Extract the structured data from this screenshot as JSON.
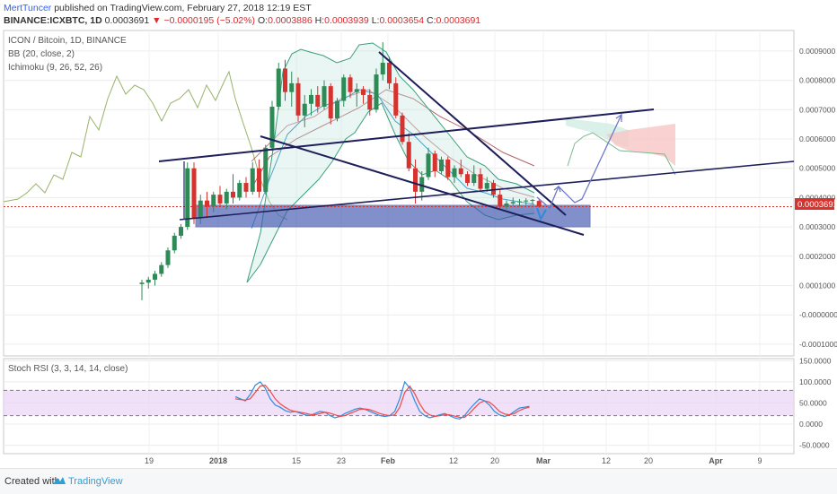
{
  "header": {
    "author": "MertTuncer",
    "published_text": "published on TradingView.com, February 27, 2018 12:19 EST",
    "symbol": "BINANCE:ICXBTC, 1D",
    "last": "0.0003691",
    "change": "▼ −0.0000195 (−5.02%)",
    "o_label": "O:",
    "o": "0.0003886",
    "h_label": "H:",
    "h": "0.0003939",
    "l_label": "L:",
    "l": "0.0003654",
    "c_label": "C:",
    "c": "0.0003691"
  },
  "legend": {
    "title": "ICON / Bitcoin, 1D, BINANCE",
    "bb": "BB (20, close, 2)",
    "ichimoku": "Ichimoku (9, 26, 52, 26)",
    "stoch": "Stoch RSI (3, 3, 14, 14, close)"
  },
  "price_tag": "0.0003691",
  "footer": {
    "created": "Created with",
    "brand": "TradingView"
  },
  "colors": {
    "up": "#2e8b57",
    "down": "#d6322e",
    "bb": "#4aa3c7",
    "cloud_green": "#cfeee3",
    "cloud_red": "#f7c6c6",
    "zone": "#3f55b0",
    "trendline": "#1e1e5a",
    "stoch_k": "#2f8ce0",
    "stoch_d": "#f04848",
    "stoch_band": "#ead4f5"
  },
  "chart_data": [
    {
      "type": "candlestick",
      "title": "ICON / Bitcoin, 1D, BINANCE",
      "x_ticks": [
        "19",
        "2018",
        "15",
        "23",
        "Feb",
        "12",
        "20",
        "Mar",
        "12",
        "20",
        "Apr",
        "9"
      ],
      "y_ticks": [
        "0.0009000",
        "0.0008000",
        "0.0007000",
        "0.0006000",
        "0.0005000",
        "0.0004000",
        "0.0003000",
        "0.0002000",
        "0.0001000",
        "-0.0000000",
        "-0.0001000"
      ],
      "ylim": [
        -0.00014,
        0.00097
      ],
      "last_price": 0.0003691,
      "candles": [
        [
          0.000105,
          0.00012,
          5e-05,
          0.00011
        ],
        [
          0.00011,
          0.00013,
          9e-05,
          0.00012
        ],
        [
          0.00012,
          0.00015,
          0.0001,
          0.00014
        ],
        [
          0.00014,
          0.00018,
          0.00013,
          0.00017
        ],
        [
          0.00017,
          0.00023,
          0.00016,
          0.00022
        ],
        [
          0.00022,
          0.00028,
          0.00021,
          0.00027
        ],
        [
          0.00027,
          0.00031,
          0.00026,
          0.0003
        ],
        [
          0.0003,
          0.00052,
          0.00029,
          0.0005
        ],
        [
          0.0005,
          0.00052,
          0.00031,
          0.00033
        ],
        [
          0.00033,
          0.00041,
          0.00031,
          0.00039
        ],
        [
          0.00039,
          0.00042,
          0.00033,
          0.00037
        ],
        [
          0.00037,
          0.00042,
          0.00035,
          0.00041
        ],
        [
          0.00041,
          0.00044,
          0.00037,
          0.00038
        ],
        [
          0.00038,
          0.00043,
          0.00036,
          0.00042
        ],
        [
          0.00042,
          0.00048,
          0.00038,
          0.0004
        ],
        [
          0.0004,
          0.00046,
          0.00039,
          0.00045
        ],
        [
          0.00045,
          0.00047,
          0.0004,
          0.00042
        ],
        [
          0.00042,
          0.00052,
          0.00041,
          0.0005
        ],
        [
          0.0005,
          0.00053,
          0.0004,
          0.00042
        ],
        [
          0.00042,
          0.00058,
          0.00041,
          0.00057
        ],
        [
          0.00057,
          0.00073,
          0.00056,
          0.00071
        ],
        [
          0.00071,
          0.00086,
          0.0007,
          0.00084
        ],
        [
          0.00084,
          0.00087,
          0.00073,
          0.00076
        ],
        [
          0.00076,
          0.00083,
          0.00071,
          0.00079
        ],
        [
          0.00079,
          0.00081,
          0.00066,
          0.00068
        ],
        [
          0.00068,
          0.00075,
          0.00064,
          0.00072
        ],
        [
          0.00072,
          0.00077,
          0.00068,
          0.00075
        ],
        [
          0.00075,
          0.00078,
          0.00069,
          0.00071
        ],
        [
          0.00071,
          0.0008,
          0.0007,
          0.00078
        ],
        [
          0.00078,
          0.00079,
          0.00065,
          0.00067
        ],
        [
          0.00067,
          0.00074,
          0.00066,
          0.00073
        ],
        [
          0.00073,
          0.00082,
          0.00071,
          0.00081
        ],
        [
          0.00081,
          0.00082,
          0.00074,
          0.00076
        ],
        [
          0.00076,
          0.00079,
          0.00071,
          0.00077
        ],
        [
          0.00077,
          0.00078,
          0.00072,
          0.00075
        ],
        [
          0.00075,
          0.00077,
          0.00068,
          0.0007
        ],
        [
          0.0007,
          0.00084,
          0.00069,
          0.00082
        ],
        [
          0.00082,
          0.00093,
          0.0008,
          0.00086
        ],
        [
          0.00086,
          0.00088,
          0.00077,
          0.00079
        ],
        [
          0.00079,
          0.00081,
          0.00067,
          0.00068
        ],
        [
          0.00068,
          0.00069,
          0.00058,
          0.00059
        ],
        [
          0.00059,
          0.00062,
          0.00049,
          0.0005
        ],
        [
          0.0005,
          0.00053,
          0.00038,
          0.00042
        ],
        [
          0.00042,
          0.00049,
          0.00039,
          0.00047
        ],
        [
          0.00047,
          0.00057,
          0.00046,
          0.00055
        ],
        [
          0.00055,
          0.00056,
          0.00047,
          0.00049
        ],
        [
          0.00049,
          0.00054,
          0.00048,
          0.00053
        ],
        [
          0.00053,
          0.00054,
          0.00046,
          0.00047
        ],
        [
          0.00047,
          0.00051,
          0.00045,
          0.0005
        ],
        [
          0.0005,
          0.00053,
          0.00047,
          0.00048
        ],
        [
          0.00048,
          0.00049,
          0.00044,
          0.00045
        ],
        [
          0.00045,
          0.00051,
          0.00044,
          0.00048
        ],
        [
          0.00048,
          0.0005,
          0.00042,
          0.00043
        ],
        [
          0.00043,
          0.00047,
          0.00042,
          0.00045
        ],
        [
          0.00045,
          0.00046,
          0.0004,
          0.00041
        ],
        [
          0.00041,
          0.00043,
          0.00036,
          0.00037
        ],
        [
          0.00037,
          0.00039,
          0.00036,
          0.00038
        ],
        [
          0.00038,
          0.0004,
          0.000375,
          0.000385
        ],
        [
          0.000385,
          0.000395,
          0.00037,
          0.000387
        ],
        [
          0.000387,
          0.000398,
          0.000375,
          0.00039
        ],
        [
          0.00039,
          0.000395,
          0.000378,
          0.000392
        ],
        [
          0.0003886,
          0.0003939,
          0.0003654,
          0.0003691
        ]
      ]
    },
    {
      "type": "line",
      "title": "Stoch RSI (3, 3, 14, 14, close)",
      "y_ticks": [
        "150.0000",
        "100.0000",
        "50.0000",
        "0.0000",
        "-50.0000"
      ],
      "ylim": [
        -70,
        155
      ],
      "bands": [
        20,
        80
      ],
      "series": [
        {
          "name": "K",
          "values": [
            65,
            60,
            55,
            70,
            92,
            100,
            85,
            60,
            45,
            40,
            32,
            28,
            30,
            26,
            22,
            20,
            25,
            30,
            28,
            20,
            15,
            18,
            25,
            30,
            35,
            38,
            35,
            30,
            25,
            20,
            18,
            20,
            30,
            60,
            100,
            85,
            55,
            30,
            20,
            15,
            18,
            22,
            25,
            20,
            15,
            12,
            20,
            35,
            48,
            60,
            55,
            45,
            30,
            22,
            18,
            22,
            30,
            38,
            40,
            42
          ]
        },
        {
          "name": "D",
          "values": [
            60,
            58,
            57,
            60,
            75,
            90,
            92,
            78,
            60,
            48,
            40,
            33,
            30,
            28,
            26,
            23,
            22,
            25,
            28,
            26,
            22,
            18,
            20,
            25,
            30,
            35,
            36,
            34,
            30,
            25,
            22,
            20,
            22,
            40,
            75,
            90,
            72,
            48,
            30,
            22,
            18,
            20,
            22,
            22,
            19,
            16,
            16,
            25,
            38,
            50,
            55,
            52,
            42,
            30,
            24,
            22,
            25,
            32,
            37,
            40
          ]
        }
      ]
    }
  ]
}
